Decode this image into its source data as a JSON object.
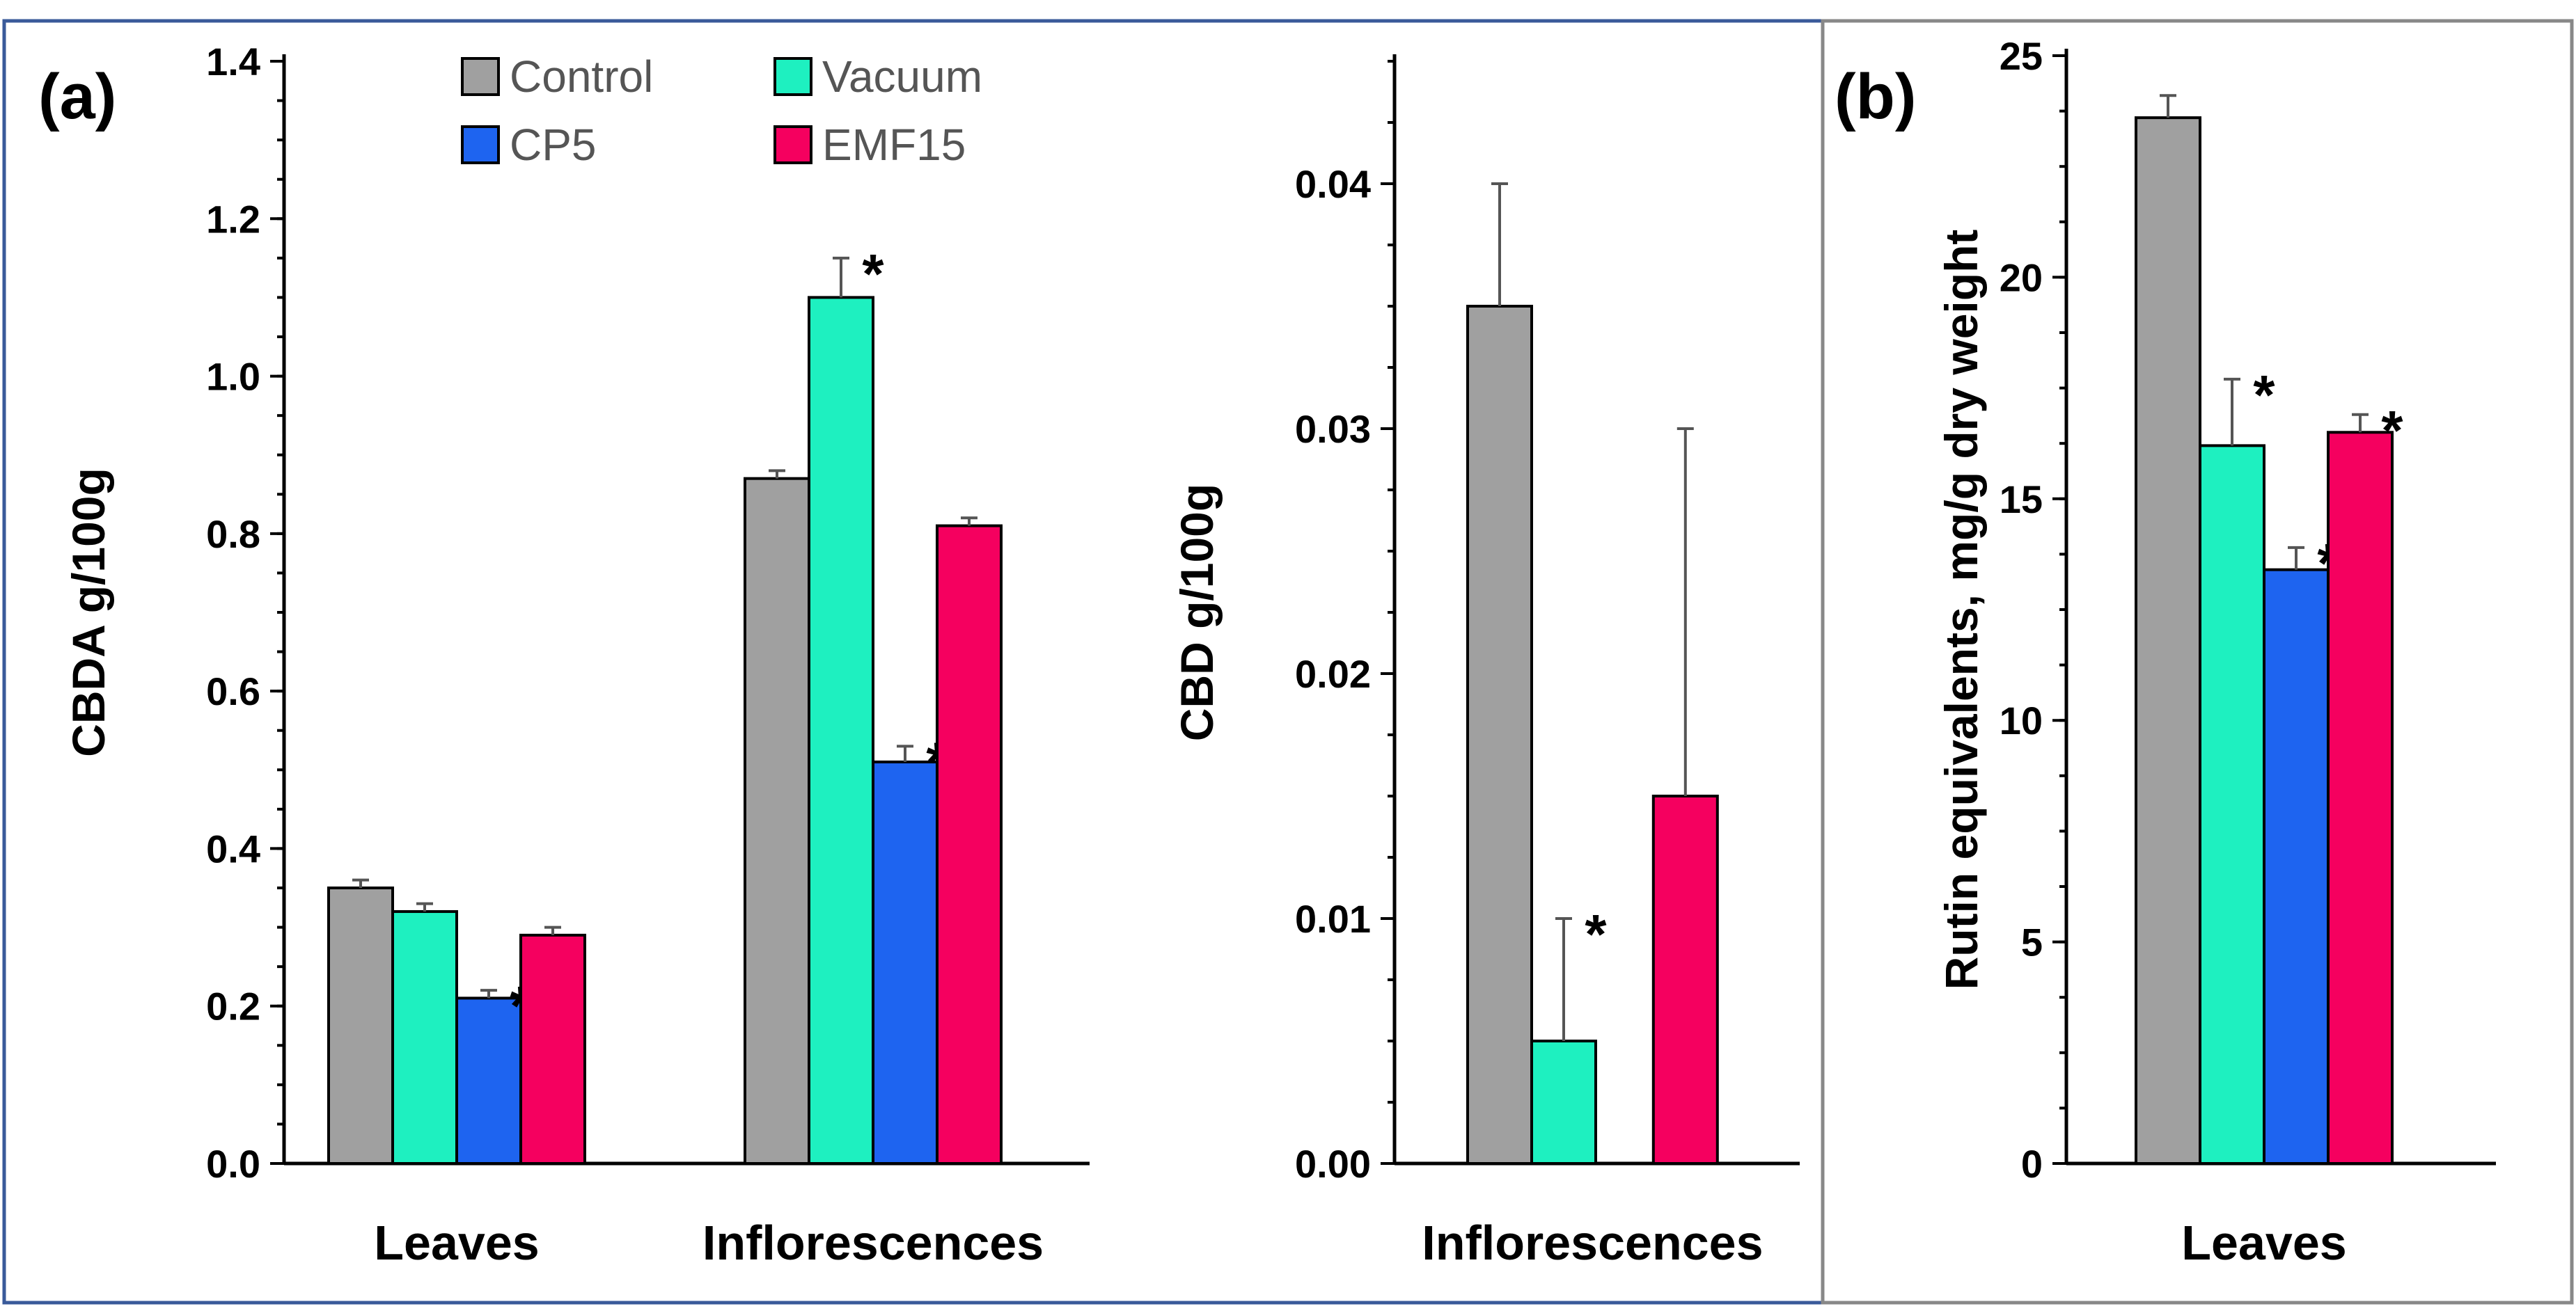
{
  "colors": {
    "Control": "#a0a0a0",
    "Vacuum": "#1ef0c0",
    "CP5": "#1e64f0",
    "EMF15": "#f5005f",
    "frame": "#3a5a9a"
  },
  "panel_a_label": "(a)",
  "panel_b_label": "(b)",
  "legend": [
    "Control",
    "Vacuum",
    "CP5",
    "EMF15"
  ],
  "chart_data": [
    {
      "id": "cbda",
      "type": "bar",
      "title": "",
      "ylabel": "CBDA g/100g",
      "xlabel": "",
      "ylim": [
        0,
        1.4
      ],
      "yticks": [
        "0.0",
        "0.2",
        "0.4",
        "0.6",
        "0.8",
        "1.0",
        "1.2",
        "1.4"
      ],
      "categories": [
        "Leaves",
        "Inflorescences"
      ],
      "series": [
        {
          "name": "Control",
          "values": [
            0.35,
            0.87
          ],
          "errors": [
            0.01,
            0.01
          ],
          "significant": [
            false,
            false
          ]
        },
        {
          "name": "Vacuum",
          "values": [
            0.32,
            1.1
          ],
          "errors": [
            0.01,
            0.05
          ],
          "significant": [
            false,
            true
          ]
        },
        {
          "name": "CP5",
          "values": [
            0.21,
            0.51
          ],
          "errors": [
            0.01,
            0.02
          ],
          "significant": [
            true,
            true
          ]
        },
        {
          "name": "EMF15",
          "values": [
            0.29,
            0.81
          ],
          "errors": [
            0.01,
            0.01
          ],
          "significant": [
            false,
            false
          ]
        }
      ],
      "marker": "*"
    },
    {
      "id": "cbd",
      "type": "bar",
      "title": "",
      "ylabel": "CBD g/100g",
      "xlabel": "",
      "ylim": [
        0,
        0.045
      ],
      "yticks": [
        "0.00",
        "0.01",
        "0.02",
        "0.03",
        "0.04"
      ],
      "categories": [
        "Inflorescences"
      ],
      "series": [
        {
          "name": "Control",
          "values": [
            0.035
          ],
          "errors": [
            0.005
          ],
          "significant": [
            false
          ]
        },
        {
          "name": "Vacuum",
          "values": [
            0.005
          ],
          "errors": [
            0.005
          ],
          "significant": [
            true
          ]
        },
        {
          "name": "CP5",
          "values": [
            0
          ],
          "errors": [
            0
          ],
          "significant": [
            false
          ]
        },
        {
          "name": "EMF15",
          "values": [
            0.015
          ],
          "errors": [
            0.015
          ],
          "significant": [
            false
          ]
        }
      ],
      "marker": "*"
    },
    {
      "id": "rutin",
      "type": "bar",
      "title": "",
      "ylabel": "Rutin equivalents, mg/g dry weight",
      "xlabel": "",
      "ylim": [
        0,
        25
      ],
      "yticks": [
        "0",
        "5",
        "10",
        "15",
        "20",
        "25"
      ],
      "categories": [
        "Leaves"
      ],
      "series": [
        {
          "name": "Control",
          "values": [
            23.6
          ],
          "errors": [
            0.5
          ],
          "significant": [
            false
          ]
        },
        {
          "name": "Vacuum",
          "values": [
            16.2
          ],
          "errors": [
            1.5
          ],
          "significant": [
            true
          ]
        },
        {
          "name": "CP5",
          "values": [
            13.4
          ],
          "errors": [
            0.5
          ],
          "significant": [
            true
          ]
        },
        {
          "name": "EMF15",
          "values": [
            16.5
          ],
          "errors": [
            0.4
          ],
          "significant": [
            true
          ]
        }
      ],
      "marker": "*"
    }
  ]
}
